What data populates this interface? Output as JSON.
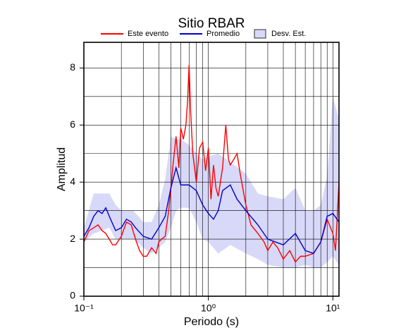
{
  "chart_data": {
    "type": "line",
    "title": "Sitio RBAR",
    "xlabel": "Periodo (s)",
    "ylabel": "Amplitud",
    "xscale": "log",
    "xlim": [
      0.1,
      11.2
    ],
    "ylim": [
      0,
      8.9
    ],
    "xticks": [
      {
        "value": 0.1,
        "label": "10⁻¹"
      },
      {
        "value": 1,
        "label": "10⁰"
      },
      {
        "value": 10,
        "label": "10¹"
      }
    ],
    "xminorticks": [
      0.2,
      0.3,
      0.4,
      0.5,
      0.6,
      0.7,
      0.8,
      0.9,
      2,
      3,
      4,
      5,
      6,
      7,
      8,
      9
    ],
    "yticks": [
      0,
      2,
      4,
      6,
      8
    ],
    "yminorticks": [
      1,
      3,
      5,
      7
    ],
    "grid": true,
    "band": {
      "name": "Desv. Est.",
      "color": "#d8d8f8",
      "x": [
        0.1,
        0.12,
        0.14,
        0.16,
        0.18,
        0.2,
        0.25,
        0.3,
        0.35,
        0.4,
        0.45,
        0.5,
        0.55,
        0.6,
        0.7,
        0.8,
        0.9,
        1.0,
        1.2,
        1.5,
        2.0,
        2.5,
        3.0,
        4.0,
        5.0,
        6.0,
        7.0,
        8.0,
        9.0,
        10.0,
        11.2
      ],
      "upper": [
        2.4,
        3.6,
        3.6,
        3.6,
        3.2,
        3.0,
        3.0,
        2.6,
        2.6,
        3.2,
        4.1,
        5.6,
        5.5,
        5.5,
        5.3,
        5.0,
        4.8,
        4.9,
        5.0,
        4.7,
        4.3,
        3.6,
        3.5,
        3.4,
        3.8,
        3.0,
        3.0,
        3.2,
        4.2,
        7.0,
        6.2
      ],
      "lower": [
        1.9,
        2.2,
        2.3,
        2.4,
        2.0,
        2.0,
        2.0,
        1.7,
        1.5,
        1.7,
        1.9,
        2.4,
        3.0,
        3.1,
        3.1,
        2.6,
        2.0,
        1.9,
        1.5,
        1.8,
        1.5,
        1.3,
        1.1,
        1.0,
        1.0,
        1.1,
        1.0,
        1.0,
        1.2,
        1.4,
        1.1
      ]
    },
    "series": [
      {
        "name": "Este evento",
        "color": "#ff0000",
        "x": [
          0.1,
          0.11,
          0.12,
          0.13,
          0.14,
          0.15,
          0.16,
          0.17,
          0.18,
          0.2,
          0.22,
          0.24,
          0.26,
          0.28,
          0.3,
          0.32,
          0.35,
          0.38,
          0.4,
          0.42,
          0.45,
          0.48,
          0.5,
          0.52,
          0.55,
          0.58,
          0.6,
          0.63,
          0.66,
          0.68,
          0.7,
          0.72,
          0.75,
          0.8,
          0.85,
          0.9,
          0.95,
          1.0,
          1.05,
          1.1,
          1.15,
          1.2,
          1.3,
          1.38,
          1.45,
          1.5,
          1.6,
          1.7,
          1.8,
          2.0,
          2.2,
          2.5,
          2.8,
          3.0,
          3.3,
          3.6,
          4.0,
          4.5,
          5.0,
          5.5,
          6.0,
          7.0,
          8.0,
          9.0,
          10.0,
          10.5,
          11.2
        ],
        "values": [
          1.9,
          2.3,
          2.4,
          2.5,
          2.3,
          2.2,
          2.0,
          1.8,
          1.8,
          2.1,
          2.6,
          2.5,
          2.0,
          1.6,
          1.4,
          1.4,
          1.7,
          1.5,
          1.9,
          2.0,
          2.1,
          3.0,
          3.8,
          4.6,
          5.6,
          4.5,
          5.9,
          5.5,
          6.0,
          6.8,
          8.1,
          6.5,
          5.0,
          4.0,
          5.2,
          5.4,
          4.4,
          5.2,
          3.4,
          4.6,
          3.8,
          3.5,
          4.5,
          6.0,
          4.8,
          4.6,
          4.8,
          5.0,
          4.3,
          3.2,
          2.5,
          2.2,
          1.9,
          1.6,
          1.9,
          1.7,
          1.3,
          1.6,
          1.2,
          1.4,
          1.4,
          1.5,
          1.9,
          2.7,
          2.2,
          1.6,
          4.0
        ]
      },
      {
        "name": "Promedio",
        "color": "#0000cc",
        "x": [
          0.1,
          0.11,
          0.12,
          0.13,
          0.14,
          0.15,
          0.16,
          0.18,
          0.2,
          0.22,
          0.24,
          0.26,
          0.3,
          0.35,
          0.4,
          0.45,
          0.5,
          0.55,
          0.6,
          0.7,
          0.8,
          0.9,
          1.0,
          1.1,
          1.2,
          1.3,
          1.5,
          1.7,
          2.0,
          2.5,
          3.0,
          4.0,
          5.0,
          6.0,
          7.0,
          8.0,
          9.0,
          10.0,
          11.2
        ],
        "values": [
          2.1,
          2.4,
          2.8,
          3.0,
          2.9,
          3.1,
          2.8,
          2.3,
          2.4,
          2.7,
          2.6,
          2.4,
          2.1,
          2.0,
          2.4,
          2.8,
          3.8,
          4.5,
          3.9,
          3.9,
          3.7,
          3.2,
          2.9,
          2.7,
          3.0,
          3.7,
          3.9,
          3.4,
          3.0,
          2.5,
          2.0,
          1.8,
          2.2,
          1.6,
          1.5,
          1.9,
          2.8,
          2.9,
          2.6
        ]
      }
    ]
  }
}
